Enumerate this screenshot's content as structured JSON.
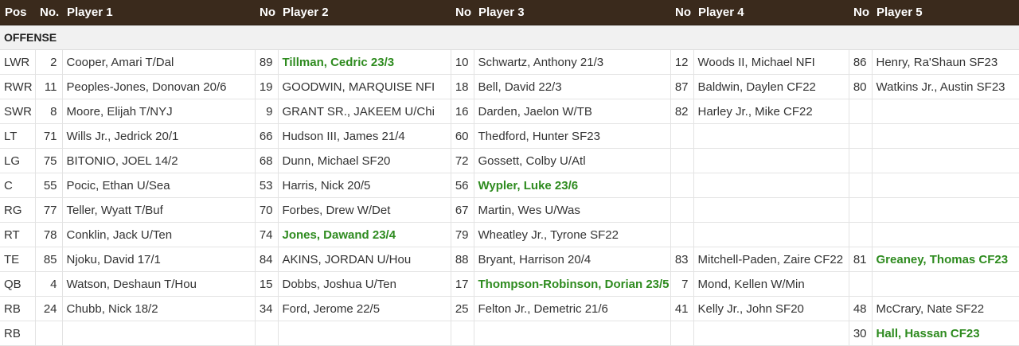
{
  "headers": [
    "Pos",
    "No.",
    "Player 1",
    "No",
    "Player 2",
    "No",
    "Player 3",
    "No",
    "Player 4",
    "No",
    "Player 5"
  ],
  "section": "OFFENSE",
  "rows": [
    {
      "pos": "LWR",
      "no1": "2",
      "p1": "Cooper, Amari T/Dal",
      "no2": "89",
      "p2": "Tillman, Cedric 23/3",
      "no3": "10",
      "p3": "Schwartz, Anthony 21/3",
      "no4": "12",
      "p4": "Woods II, Michael NFI",
      "no5": "86",
      "p5": "Henry, Ra'Shaun SF23"
    },
    {
      "pos": "RWR",
      "no1": "11",
      "p1": "Peoples-Jones, Donovan 20/6",
      "no2": "19",
      "p2": "GOODWIN, MARQUISE NFI",
      "no3": "18",
      "p3": "Bell, David 22/3",
      "no4": "87",
      "p4": "Baldwin, Daylen CF22",
      "no5": "80",
      "p5": "Watkins Jr., Austin SF23"
    },
    {
      "pos": "SWR",
      "no1": "8",
      "p1": "Moore, Elijah T/NYJ",
      "no2": "9",
      "p2": "GRANT SR., JAKEEM U/Chi",
      "no3": "16",
      "p3": "Darden, Jaelon W/TB",
      "no4": "82",
      "p4": "Harley Jr., Mike CF22",
      "no5": "",
      "p5": ""
    },
    {
      "pos": "LT",
      "no1": "71",
      "p1": "Wills Jr., Jedrick 20/1",
      "no2": "66",
      "p2": "Hudson III, James 21/4",
      "no3": "60",
      "p3": "Thedford, Hunter SF23",
      "no4": "",
      "p4": "",
      "no5": "",
      "p5": ""
    },
    {
      "pos": "LG",
      "no1": "75",
      "p1": "BITONIO, JOEL 14/2",
      "no2": "68",
      "p2": "Dunn, Michael SF20",
      "no3": "72",
      "p3": "Gossett, Colby U/Atl",
      "no4": "",
      "p4": "",
      "no5": "",
      "p5": ""
    },
    {
      "pos": "C",
      "no1": "55",
      "p1": "Pocic, Ethan U/Sea",
      "no2": "53",
      "p2": "Harris, Nick 20/5",
      "no3": "56",
      "p3": "Wypler, Luke 23/6",
      "no4": "",
      "p4": "",
      "no5": "",
      "p5": ""
    },
    {
      "pos": "RG",
      "no1": "77",
      "p1": "Teller, Wyatt T/Buf",
      "no2": "70",
      "p2": "Forbes, Drew W/Det",
      "no3": "67",
      "p3": "Martin, Wes U/Was",
      "no4": "",
      "p4": "",
      "no5": "",
      "p5": ""
    },
    {
      "pos": "RT",
      "no1": "78",
      "p1": "Conklin, Jack U/Ten",
      "no2": "74",
      "p2": "Jones, Dawand 23/4",
      "no3": "79",
      "p3": "Wheatley Jr., Tyrone SF22",
      "no4": "",
      "p4": "",
      "no5": "",
      "p5": ""
    },
    {
      "pos": "TE",
      "no1": "85",
      "p1": "Njoku, David 17/1",
      "no2": "84",
      "p2": "AKINS, JORDAN U/Hou",
      "no3": "88",
      "p3": "Bryant, Harrison 20/4",
      "no4": "83",
      "p4": "Mitchell-Paden, Zaire CF22",
      "no5": "81",
      "p5": "Greaney, Thomas CF23"
    },
    {
      "pos": "QB",
      "no1": "4",
      "p1": "Watson, Deshaun T/Hou",
      "no2": "15",
      "p2": "Dobbs, Joshua U/Ten",
      "no3": "17",
      "p3": "Thompson-Robinson, Dorian 23/5",
      "no4": "7",
      "p4": "Mond, Kellen W/Min",
      "no5": "",
      "p5": ""
    },
    {
      "pos": "RB",
      "no1": "24",
      "p1": "Chubb, Nick 18/2",
      "no2": "34",
      "p2": "Ford, Jerome 22/5",
      "no3": "25",
      "p3": "Felton Jr., Demetric 21/6",
      "no4": "41",
      "p4": "Kelly Jr., John SF20",
      "no5": "48",
      "p5": "McCrary, Nate SF22"
    },
    {
      "pos": "RB",
      "no1": "",
      "p1": "",
      "no2": "",
      "p2": "",
      "no3": "",
      "p3": "",
      "no4": "",
      "p4": "",
      "no5": "30",
      "p5": "Hall, Hassan CF23"
    }
  ],
  "highlighted": [
    [
      0,
      "p2"
    ],
    [
      5,
      "p3"
    ],
    [
      7,
      "p2"
    ],
    [
      8,
      "p5"
    ],
    [
      9,
      "p3"
    ],
    [
      11,
      "p5"
    ]
  ],
  "colors": {
    "header_bg": "#3a2a1c",
    "link": "#2f5fb3",
    "highlight": "#2e8b1f",
    "section_bg": "#f1f1f1"
  }
}
